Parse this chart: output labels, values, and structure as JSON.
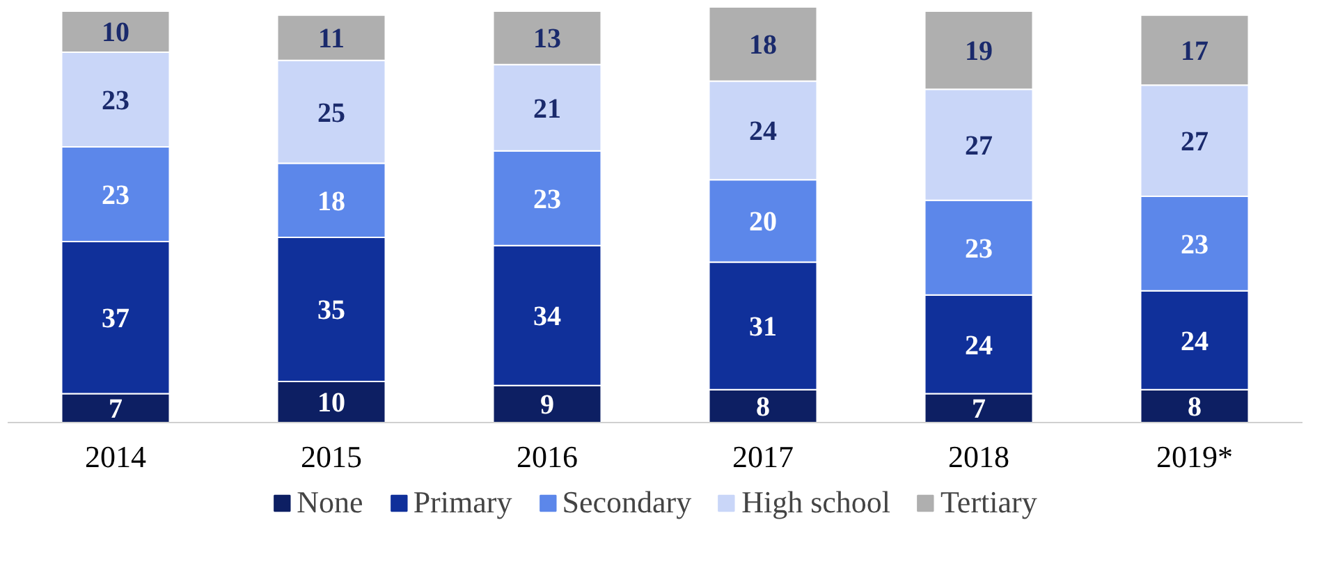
{
  "chart_data": {
    "type": "bar",
    "stacked": true,
    "data_labels": true,
    "legend": "bottom",
    "categories": [
      "2014",
      "2015",
      "2016",
      "2017",
      "2018",
      "2019*"
    ],
    "series": [
      {
        "name": "None",
        "color": "#0d1f63",
        "values": [
          7,
          10,
          9,
          8,
          7,
          8
        ]
      },
      {
        "name": "Primary",
        "color": "#10309a",
        "values": [
          37,
          35,
          34,
          31,
          24,
          24
        ]
      },
      {
        "name": "Secondary",
        "color": "#5c87ea",
        "values": [
          23,
          18,
          23,
          20,
          23,
          23
        ]
      },
      {
        "name": "High school",
        "color": "#c9d6f8",
        "values": [
          23,
          25,
          21,
          24,
          27,
          27
        ]
      },
      {
        "name": "Tertiary",
        "color": "#afafaf",
        "values": [
          10,
          11,
          13,
          18,
          19,
          17
        ]
      }
    ]
  }
}
